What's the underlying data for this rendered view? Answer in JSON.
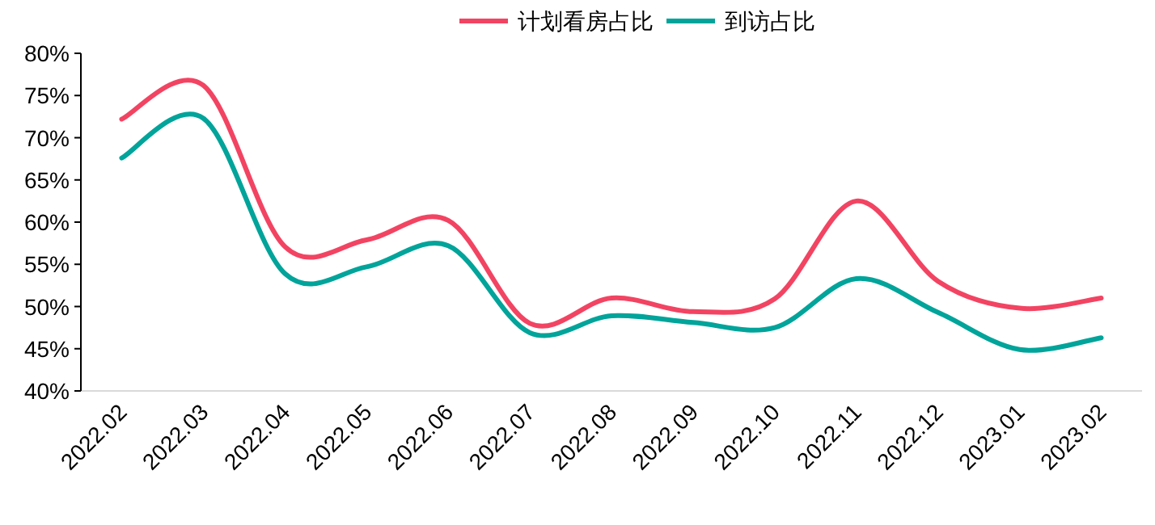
{
  "chart_data": {
    "type": "line",
    "categories": [
      "2022.02",
      "2022.03",
      "2022.04",
      "2022.05",
      "2022.06",
      "2022.07",
      "2022.08",
      "2022.09",
      "2022.10",
      "2022.11",
      "2022.12",
      "2023.01",
      "2023.02"
    ],
    "series": [
      {
        "name": "计划看房占比",
        "color": "#f24462",
        "values": [
          72.2,
          76.2,
          57.1,
          57.9,
          60.2,
          48.0,
          51.0,
          49.4,
          50.9,
          62.5,
          53.0,
          49.8,
          51.0
        ]
      },
      {
        "name": "到访占比",
        "color": "#00a49a",
        "values": [
          67.6,
          72.3,
          53.9,
          54.7,
          57.2,
          46.9,
          48.9,
          48.1,
          47.5,
          53.3,
          49.3,
          44.9,
          46.3
        ]
      }
    ],
    "ylim": [
      40,
      80
    ],
    "yticks": [
      {
        "value": 40,
        "label": "40%"
      },
      {
        "value": 45,
        "label": "45%"
      },
      {
        "value": 50,
        "label": "50%"
      },
      {
        "value": 55,
        "label": "55%"
      },
      {
        "value": 60,
        "label": "60%"
      },
      {
        "value": 65,
        "label": "65%"
      },
      {
        "value": 70,
        "label": "70%"
      },
      {
        "value": 75,
        "label": "75%"
      },
      {
        "value": 80,
        "label": "80%"
      }
    ],
    "legend": "top",
    "grid": false,
    "marker": "none",
    "line_style": "solid"
  }
}
